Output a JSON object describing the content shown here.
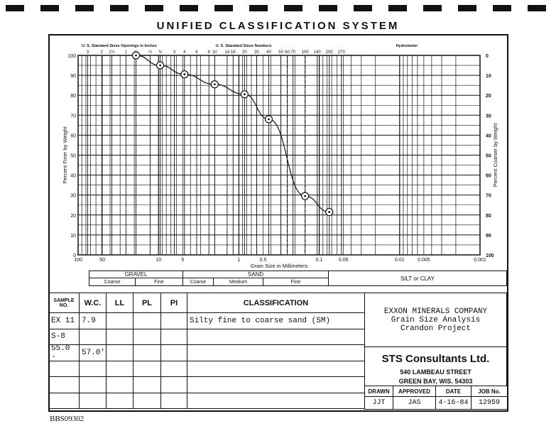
{
  "title": "UNIFIED CLASSIFICATION SYSTEM",
  "chart_data": {
    "type": "line",
    "xlabel": "Grain Size in Millimeters",
    "ylabel": "Percent Finer by Weight",
    "ylabel_right": "Percent Coarser by Weight",
    "x_scale": "log",
    "x_reversed": true,
    "xlim": [
      100,
      0.001
    ],
    "ylim": [
      0,
      100
    ],
    "grid": true,
    "x_ticks": [
      "100",
      "50",
      "10",
      "5",
      "1",
      "0.5",
      "0.1",
      "0.05",
      "0.01",
      "0.005",
      "0.001"
    ],
    "x_tick_values": [
      100,
      50,
      10,
      5,
      1,
      0.5,
      0.1,
      0.05,
      0.01,
      0.005,
      0.001
    ],
    "y_ticks": [
      "0",
      "10",
      "20",
      "30",
      "40",
      "50",
      "60",
      "70",
      "80",
      "90",
      "100"
    ],
    "y_right_ticks": [
      "100",
      "90",
      "80",
      "70",
      "60",
      "50",
      "40",
      "30",
      "20",
      "10",
      "0"
    ],
    "top_axis_1_label": "U. S. Standard Sieve Openings in Inches",
    "top_axis_1": [
      {
        "label": "3",
        "mm": 76.2
      },
      {
        "label": "2",
        "mm": 50.8
      },
      {
        "label": "1½",
        "mm": 38.1
      },
      {
        "label": "1",
        "mm": 25.4
      },
      {
        "label": "¾",
        "mm": 19.05
      },
      {
        "label": "½",
        "mm": 12.7
      },
      {
        "label": "⅜",
        "mm": 9.525
      }
    ],
    "top_axis_2_label": "U. S. Standard Sieve Numbers",
    "top_axis_2": [
      {
        "label": "3",
        "mm": 6.35
      },
      {
        "label": "4",
        "mm": 4.75
      },
      {
        "label": "6",
        "mm": 3.35
      },
      {
        "label": "8",
        "mm": 2.36
      },
      {
        "label": "10",
        "mm": 2.0
      },
      {
        "label": "14",
        "mm": 1.4
      },
      {
        "label": "16",
        "mm": 1.18
      },
      {
        "label": "20",
        "mm": 0.85
      },
      {
        "label": "30",
        "mm": 0.6
      },
      {
        "label": "40",
        "mm": 0.425
      },
      {
        "label": "50",
        "mm": 0.3
      },
      {
        "label": "60",
        "mm": 0.25
      },
      {
        "label": "70",
        "mm": 0.212
      },
      {
        "label": "100",
        "mm": 0.15
      },
      {
        "label": "140",
        "mm": 0.106
      },
      {
        "label": "200",
        "mm": 0.075
      },
      {
        "label": "270",
        "mm": 0.053
      }
    ],
    "hydrometer_label": "Hydrometer",
    "dashed_lines_mm": [
      0.25,
      0.15
    ],
    "series": [
      {
        "x": [
          19.05,
          9.525,
          4.75,
          2.0,
          0.85,
          0.425,
          0.15,
          0.075
        ],
        "y": [
          100,
          95,
          90.5,
          85.5,
          80.5,
          68,
          29.5,
          21.5
        ]
      }
    ]
  },
  "gradation": {
    "gravel": "GRAVEL",
    "sand": "SAND",
    "silt_clay": "SILT or CLAY",
    "gravel_coarse": "Coarse",
    "gravel_fine": "Fine",
    "sand_coarse": "Coarse",
    "sand_medium": "Medium",
    "sand_fine": "Fine"
  },
  "table": {
    "headers": [
      "SAMPLE NO.",
      "W.C.",
      "LL",
      "PL",
      "PI",
      "CLASSIFICATION"
    ],
    "rows": [
      [
        "EX 11",
        "7.9",
        "",
        "",
        "",
        "Silty fine to coarse sand (SM)"
      ],
      [
        "S-8",
        "",
        "",
        "",
        "",
        ""
      ],
      [
        "55.0 -",
        "57.0'",
        "",
        "",
        "",
        ""
      ],
      [
        "",
        "",
        "",
        "",
        "",
        ""
      ],
      [
        "",
        "",
        "",
        "",
        "",
        ""
      ],
      [
        "",
        "",
        "",
        "",
        "",
        ""
      ]
    ]
  },
  "client": {
    "line1": "EXXON MINERALS COMPANY",
    "line2": "Grain Size Analysis",
    "line3": "Crandon Project"
  },
  "firm": {
    "name": "STS Consultants Ltd.",
    "address1": "540 LAMBEAU STREET",
    "address2": "GREEN BAY, WIS. 54303"
  },
  "signoff": {
    "headers": [
      "DRAWN",
      "APPROVED",
      "DATE",
      "JOB No."
    ],
    "values": [
      "JJT",
      "JAS",
      "4-16-84",
      "12959"
    ]
  },
  "footer": "BBS09302"
}
